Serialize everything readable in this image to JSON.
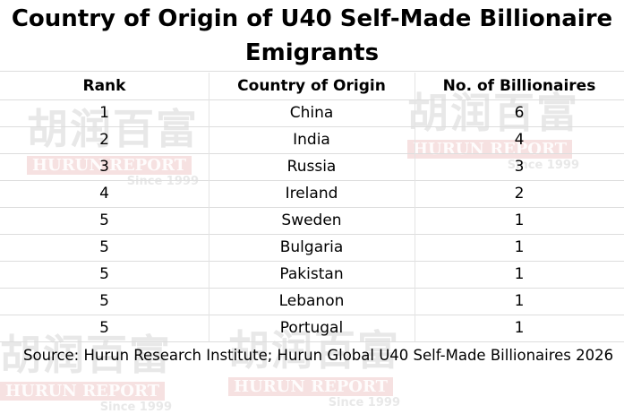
{
  "title": "Country of Origin of U40 Self-Made Billionaire Emigrants",
  "table": {
    "columns": [
      "Rank",
      "Country of Origin",
      "No. of Billionaires"
    ],
    "rows": [
      [
        1,
        "China",
        6
      ],
      [
        2,
        "India",
        4
      ],
      [
        3,
        "Russia",
        3
      ],
      [
        4,
        "Ireland",
        2
      ],
      [
        5,
        "Sweden",
        1
      ],
      [
        5,
        "Bulgaria",
        1
      ],
      [
        5,
        "Pakistan",
        1
      ],
      [
        5,
        "Lebanon",
        1
      ],
      [
        5,
        "Portugal",
        1
      ]
    ]
  },
  "source": "Source: Hurun Research Institute; Hurun Global U40 Self-Made Billionaires 2026",
  "watermark": {
    "brand": "胡润百富",
    "name": "HURUN REPORT",
    "since": "Since 1999"
  }
}
